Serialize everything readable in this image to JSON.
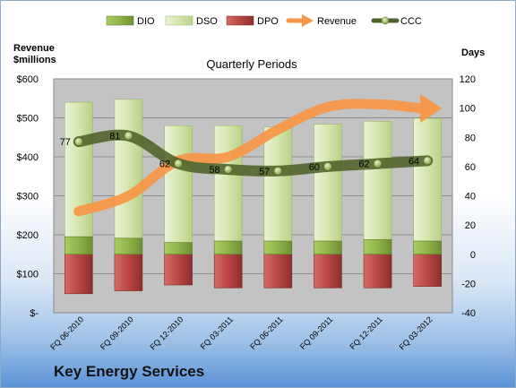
{
  "company_name": "Key Energy Services",
  "chart_data": {
    "type": "bar",
    "subtitle": "Quarterly Periods",
    "left_axis_title": [
      "Revenue",
      "$millions"
    ],
    "right_axis_title": "Days",
    "categories": [
      "FQ 06-2010",
      "FQ 09-2010",
      "FQ 12-2010",
      "FQ 03-2011",
      "FQ 06-2011",
      "FQ 09-2011",
      "FQ 12-2011",
      "FQ 03-2012"
    ],
    "left_axis": {
      "ticks": [
        "$-",
        "$100",
        "$200",
        "$300",
        "$400",
        "$500",
        "$600"
      ],
      "min": 0,
      "max": 600,
      "step": 100
    },
    "right_axis": {
      "ticks": [
        "-40",
        "-20",
        "0",
        "20",
        "40",
        "60",
        "80",
        "100",
        "120"
      ],
      "min": -40,
      "max": 120,
      "step": 20
    },
    "series": [
      {
        "name": "DIO",
        "kind": "stacked-bar",
        "color": "#8fb449",
        "values": [
          12,
          11,
          8,
          9,
          9,
          9,
          10,
          9
        ]
      },
      {
        "name": "DSO",
        "kind": "stacked-bar",
        "color": "#d7e7b1",
        "values": [
          92,
          95,
          80,
          79,
          78,
          80,
          81,
          84
        ]
      },
      {
        "name": "DPO",
        "kind": "stacked-bar-negative",
        "color": "#c0504d",
        "values": [
          -27,
          -25,
          -21,
          -23,
          -23,
          -23,
          -23,
          -22
        ]
      },
      {
        "name": "Revenue",
        "kind": "arrow-line",
        "axis": "left",
        "color": "#f79646",
        "values": [
          260,
          300,
          390,
          400,
          470,
          528,
          535,
          524
        ]
      },
      {
        "name": "CCC",
        "kind": "line",
        "axis": "right",
        "color": "#4f6228",
        "values": [
          77,
          81,
          62,
          58,
          57,
          60,
          62,
          64
        ]
      }
    ],
    "ccc_labels": [
      "77",
      "81",
      "62",
      "58",
      "57",
      "60",
      "62",
      "64"
    ],
    "grid": true,
    "legend_position": "top"
  }
}
